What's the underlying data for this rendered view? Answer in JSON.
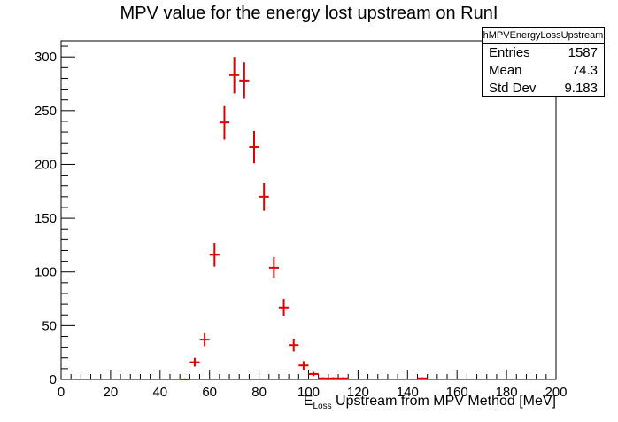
{
  "chart_data": {
    "type": "histogram",
    "title": "MPV value for the energy lost upstream on RunI",
    "xlabel_main": "E",
    "xlabel_sub": "Loss",
    "xlabel_rest": " Upstream from MPV Method [MeV]",
    "ylabel": "",
    "xlim": [
      0,
      200
    ],
    "ylim": [
      0,
      315
    ],
    "x_ticks": [
      0,
      20,
      40,
      60,
      80,
      100,
      120,
      140,
      160,
      180,
      200
    ],
    "y_ticks": [
      0,
      50,
      100,
      150,
      200,
      250,
      300
    ],
    "bin_width": 4,
    "color": "#e00000",
    "points": [
      {
        "x": 50,
        "y": 0,
        "err": 1
      },
      {
        "x": 54,
        "y": 16,
        "err": 4
      },
      {
        "x": 58,
        "y": 37,
        "err": 6
      },
      {
        "x": 62,
        "y": 116,
        "err": 11
      },
      {
        "x": 66,
        "y": 239,
        "err": 16
      },
      {
        "x": 70,
        "y": 283,
        "err": 17
      },
      {
        "x": 74,
        "y": 278,
        "err": 17
      },
      {
        "x": 78,
        "y": 216,
        "err": 15
      },
      {
        "x": 82,
        "y": 170,
        "err": 13
      },
      {
        "x": 86,
        "y": 104,
        "err": 10
      },
      {
        "x": 90,
        "y": 67,
        "err": 8
      },
      {
        "x": 94,
        "y": 32,
        "err": 6
      },
      {
        "x": 98,
        "y": 13,
        "err": 4
      },
      {
        "x": 102,
        "y": 5,
        "err": 2
      },
      {
        "x": 106,
        "y": 1,
        "err": 1
      },
      {
        "x": 110,
        "y": 1,
        "err": 1
      },
      {
        "x": 114,
        "y": 1,
        "err": 1
      },
      {
        "x": 146,
        "y": 1,
        "err": 1
      }
    ]
  },
  "stats_box": {
    "name": "hMPVEnergyLossUpstream",
    "entries_label": "Entries",
    "entries_value": "1587",
    "mean_label": "Mean",
    "mean_value": "74.3",
    "stddev_label": "Std Dev",
    "stddev_value": "9.183"
  }
}
